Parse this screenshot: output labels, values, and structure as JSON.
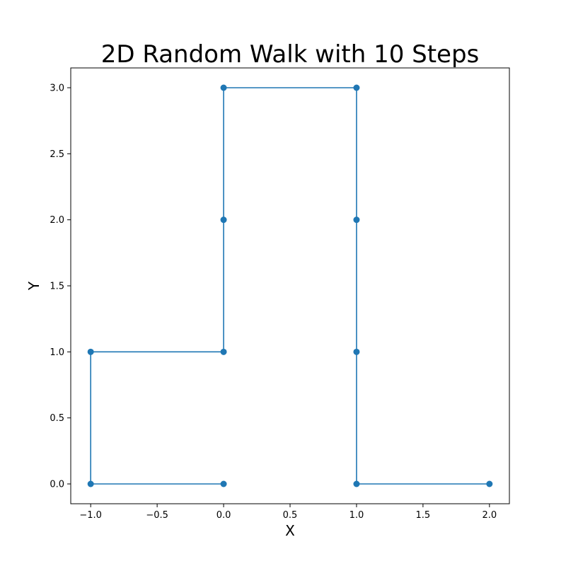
{
  "chart_data": {
    "type": "line",
    "title": "2D Random Walk with 10 Steps",
    "xlabel": "X",
    "ylabel": "Y",
    "xlim": [
      -1.15,
      2.15
    ],
    "ylim": [
      -0.15,
      3.15
    ],
    "xticks": [
      -1.0,
      -0.5,
      0.0,
      0.5,
      1.0,
      1.5,
      2.0
    ],
    "xtick_labels": [
      "−1.0",
      "−0.5",
      "0.0",
      "0.5",
      "1.0",
      "1.5",
      "2.0"
    ],
    "yticks": [
      0.0,
      0.5,
      1.0,
      1.5,
      2.0,
      2.5,
      3.0
    ],
    "ytick_labels": [
      "0.0",
      "0.5",
      "1.0",
      "1.5",
      "2.0",
      "2.5",
      "3.0"
    ],
    "grid": false,
    "legend": false,
    "color": "#1f77b4",
    "marker": "circle",
    "series": [
      {
        "x": [
          0,
          -1,
          -1,
          0,
          0,
          0,
          1,
          1,
          1,
          1,
          2
        ],
        "y": [
          0,
          0,
          1,
          1,
          2,
          3,
          3,
          2,
          1,
          0,
          0
        ]
      }
    ]
  }
}
